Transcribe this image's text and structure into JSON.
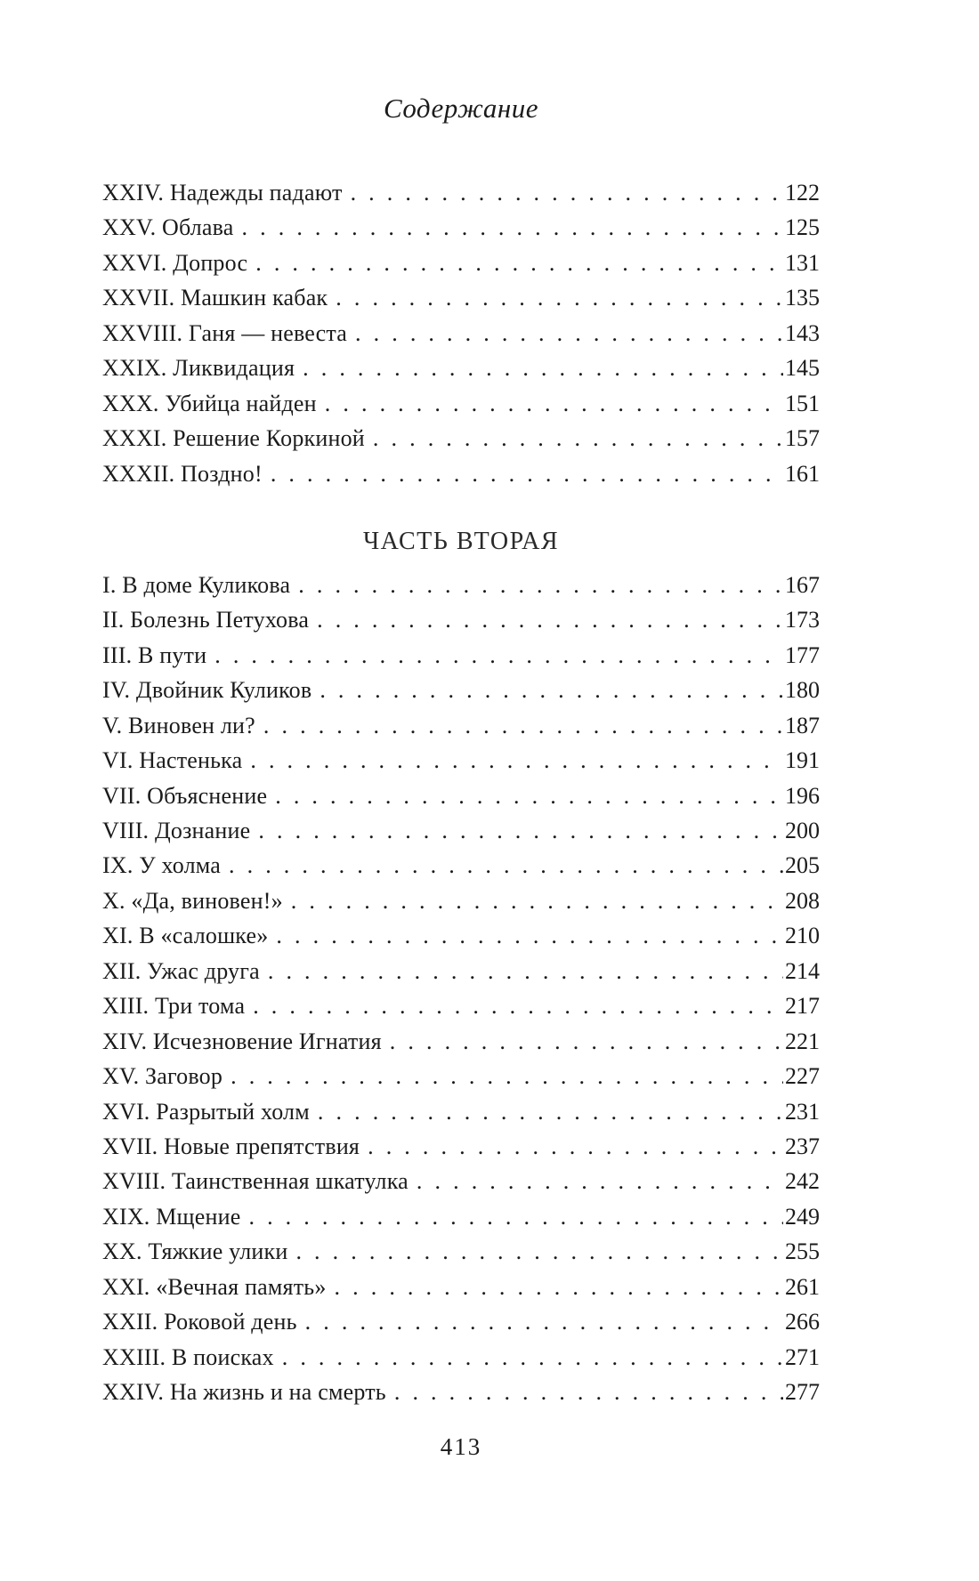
{
  "page": {
    "title": "Содержание",
    "page_number": "413"
  },
  "toc": {
    "sections": [
      {
        "heading": "",
        "entries": [
          {
            "title": "XXIV. Надежды падают",
            "page": "122"
          },
          {
            "title": "XXV. Облава",
            "page": "125"
          },
          {
            "title": "XXVI. Допрос",
            "page": "131"
          },
          {
            "title": "XXVII. Машкин кабак",
            "page": "135"
          },
          {
            "title": "XXVIII. Ганя — невеста",
            "page": "143"
          },
          {
            "title": "XXIX. Ликвидация",
            "page": "145"
          },
          {
            "title": "XXX. Убийца найден",
            "page": "151"
          },
          {
            "title": "XXXI. Решение Коркиной",
            "page": "157"
          },
          {
            "title": "XXXII. Поздно!",
            "page": "161"
          }
        ]
      },
      {
        "heading": "ЧАСТЬ ВТОРАЯ",
        "entries": [
          {
            "title": "I. В доме Куликова",
            "page": "167"
          },
          {
            "title": "II. Болезнь Петухова",
            "page": "173"
          },
          {
            "title": "III. В пути",
            "page": "177"
          },
          {
            "title": "IV. Двойник Куликов",
            "page": "180"
          },
          {
            "title": "V. Виновен ли?",
            "page": "187"
          },
          {
            "title": "VI. Настенька",
            "page": "191"
          },
          {
            "title": "VII. Объяснение",
            "page": "196"
          },
          {
            "title": "VIII. Дознание",
            "page": "200"
          },
          {
            "title": "IX. У холма",
            "page": "205"
          },
          {
            "title": "X. «Да, виновен!»",
            "page": "208"
          },
          {
            "title": "XI. В «салошке»",
            "page": "210"
          },
          {
            "title": "XII. Ужас друга",
            "page": "214"
          },
          {
            "title": "XIII. Три тома",
            "page": "217"
          },
          {
            "title": "XIV. Исчезновение Игнатия",
            "page": "221"
          },
          {
            "title": "XV. Заговор",
            "page": "227"
          },
          {
            "title": "XVI. Разрытый холм",
            "page": "231"
          },
          {
            "title": "XVII. Новые препятствия",
            "page": "237"
          },
          {
            "title": "XVIII. Таинственная шкатулка",
            "page": "242"
          },
          {
            "title": "XIX. Мщение",
            "page": "249"
          },
          {
            "title": "XX. Тяжкие улики",
            "page": "255"
          },
          {
            "title": "XXI. «Вечная память»",
            "page": "261"
          },
          {
            "title": "XXII. Роковой день",
            "page": "266"
          },
          {
            "title": "XXIII. В поисках",
            "page": "271"
          },
          {
            "title": "XXIV. На жизнь и на смерть",
            "page": "277"
          }
        ]
      }
    ]
  }
}
